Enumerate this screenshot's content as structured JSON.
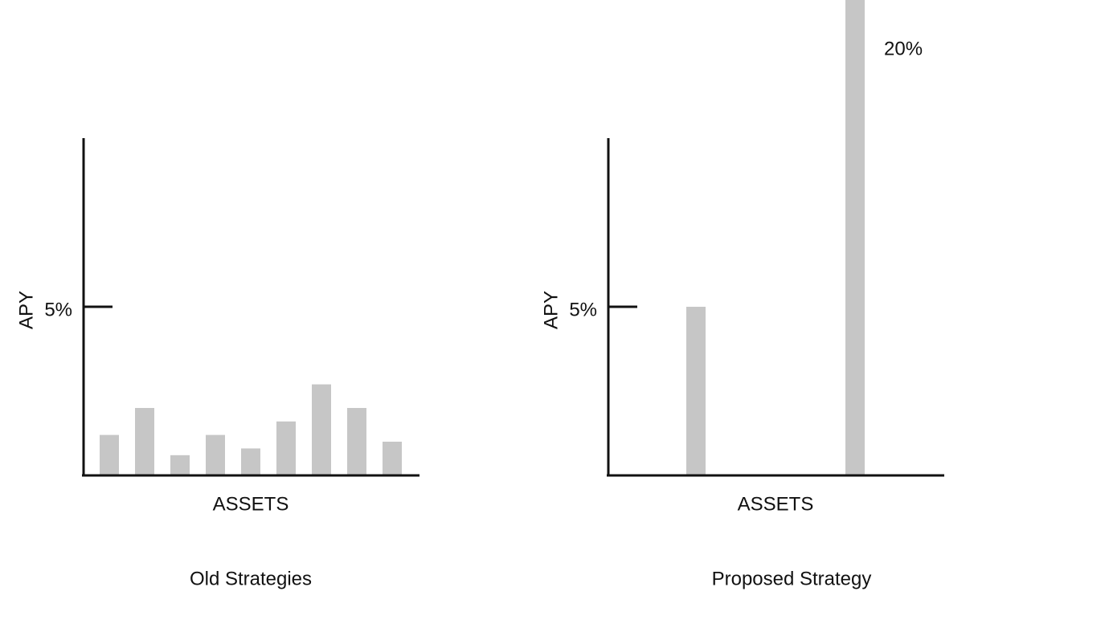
{
  "chart_data": [
    {
      "type": "bar",
      "title": "Old Strategies",
      "ylabel": "APY",
      "xlabel": "ASSETS",
      "categories": [
        null,
        null,
        null,
        null,
        null,
        null,
        null,
        null,
        null
      ],
      "values": [
        1.2,
        2.0,
        0.6,
        1.2,
        0.8,
        1.6,
        2.7,
        2.0,
        1.0
      ],
      "color": "#c6c6c6",
      "ylim": [
        0,
        10
      ],
      "yticks": [
        {
          "value": 5,
          "label": "5%"
        }
      ]
    },
    {
      "type": "bar",
      "title": "Proposed Strategy",
      "ylabel": "APY",
      "xlabel": "ASSETS",
      "categories": [
        null,
        null
      ],
      "values": [
        5,
        20
      ],
      "value_labels": [
        null,
        "20%"
      ],
      "color": "#c6c6c6",
      "ylim": [
        0,
        10
      ],
      "yticks": [
        {
          "value": 5,
          "label": "5%"
        }
      ]
    }
  ]
}
